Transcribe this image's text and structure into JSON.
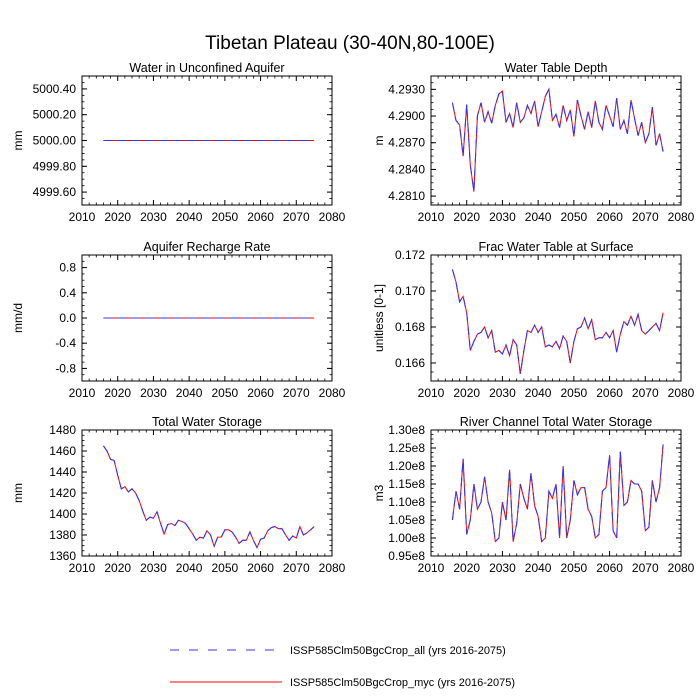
{
  "title": "Tibetan Plateau (30-40N,80-100E)",
  "colors": {
    "series_all": "#3333ff",
    "series_myc": "#ff0000"
  },
  "legend": {
    "placement": "bottom",
    "items": [
      {
        "label": "ISSP585Clm50BgcCrop_all (yrs 2016-2075)",
        "style": "dashed",
        "color": "#3333ff"
      },
      {
        "label": "ISSP585Clm50BgcCrop_myc (yrs 2016-2075)",
        "style": "solid",
        "color": "#ff0000"
      }
    ]
  },
  "chart_data": [
    {
      "type": "line",
      "title": "Water in Unconfined Aquifer",
      "ylabel": "mm",
      "xlim": [
        2010,
        2080
      ],
      "ylim": [
        4999.5,
        5000.5
      ],
      "xticks": [
        2010,
        2020,
        2030,
        2040,
        2050,
        2060,
        2070,
        2080
      ],
      "yticks": [
        4999.6,
        4999.8,
        5000.0,
        5000.2,
        5000.4
      ],
      "ytick_labels": [
        "4999.60",
        "4999.80",
        "5000.00",
        "5000.20",
        "5000.40"
      ],
      "x": [
        2016,
        2075
      ],
      "y": [
        5000.0,
        5000.0
      ]
    },
    {
      "type": "line",
      "title": "Water Table Depth",
      "ylabel": "m",
      "xlim": [
        2010,
        2080
      ],
      "ylim": [
        4.28,
        4.2945
      ],
      "xticks": [
        2010,
        2020,
        2030,
        2040,
        2050,
        2060,
        2070,
        2080
      ],
      "yticks": [
        4.281,
        4.284,
        4.287,
        4.29,
        4.293
      ],
      "ytick_labels": [
        "4.2810",
        "4.2840",
        "4.2870",
        "4.2900",
        "4.2930"
      ],
      "x_start": 2016,
      "y": [
        4.2915,
        4.2895,
        4.289,
        4.2855,
        4.2913,
        4.2845,
        4.2815,
        4.29,
        4.2915,
        4.2893,
        4.2905,
        4.2892,
        4.2912,
        4.2925,
        4.2928,
        4.2893,
        4.2903,
        4.2887,
        4.2915,
        4.2893,
        4.2898,
        4.2912,
        4.2903,
        4.2917,
        4.2888,
        4.2905,
        4.2922,
        4.293,
        4.2895,
        4.2902,
        4.2887,
        4.2912,
        4.2895,
        4.2907,
        4.2877,
        4.2918,
        4.29,
        4.2885,
        4.2905,
        4.2887,
        4.2917,
        4.2893,
        4.2885,
        4.2912,
        4.29,
        4.2888,
        4.292,
        4.2885,
        4.2895,
        4.288,
        4.2918,
        4.2897,
        4.2878,
        4.2893,
        4.287,
        4.288,
        4.291,
        4.2867,
        4.288,
        4.286
      ]
    },
    {
      "type": "line",
      "title": "Aquifer Recharge Rate",
      "ylabel": "mm/d",
      "xlim": [
        2010,
        2080
      ],
      "ylim": [
        -1.0,
        1.0
      ],
      "xticks": [
        2010,
        2020,
        2030,
        2040,
        2050,
        2060,
        2070,
        2080
      ],
      "yticks": [
        -0.8,
        -0.4,
        0.0,
        0.4,
        0.8
      ],
      "ytick_labels": [
        "-0.8",
        "-0.4",
        "0.0",
        "0.4",
        "0.8"
      ],
      "x": [
        2016,
        2075
      ],
      "y": [
        0.0,
        0.0
      ]
    },
    {
      "type": "line",
      "title": "Frac Water Table at Surface",
      "ylabel": "unitless [0-1]",
      "xlim": [
        2010,
        2080
      ],
      "ylim": [
        0.165,
        0.172
      ],
      "xticks": [
        2010,
        2020,
        2030,
        2040,
        2050,
        2060,
        2070,
        2080
      ],
      "yticks": [
        0.166,
        0.168,
        0.17,
        0.172
      ],
      "ytick_labels": [
        "0.166",
        "0.168",
        "0.170",
        "0.172"
      ],
      "x_start": 2016,
      "y": [
        0.1712,
        0.1705,
        0.1694,
        0.1697,
        0.1688,
        0.1667,
        0.1672,
        0.1676,
        0.1677,
        0.168,
        0.1674,
        0.1678,
        0.1666,
        0.1667,
        0.1665,
        0.167,
        0.1664,
        0.1673,
        0.167,
        0.1654,
        0.1667,
        0.1678,
        0.1677,
        0.1681,
        0.1677,
        0.168,
        0.1669,
        0.167,
        0.1669,
        0.1672,
        0.1668,
        0.1675,
        0.1672,
        0.166,
        0.1672,
        0.1679,
        0.168,
        0.1685,
        0.1679,
        0.1684,
        0.1673,
        0.1674,
        0.1674,
        0.1677,
        0.1674,
        0.1678,
        0.1666,
        0.1676,
        0.1683,
        0.1681,
        0.1686,
        0.1681,
        0.1687,
        0.1678,
        0.1676,
        0.1678,
        0.168,
        0.1682,
        0.1678,
        0.1688
      ]
    },
    {
      "type": "line",
      "title": "Total Water Storage",
      "ylabel": "mm",
      "xlim": [
        2010,
        2080
      ],
      "ylim": [
        1360,
        1480
      ],
      "xticks": [
        2010,
        2020,
        2030,
        2040,
        2050,
        2060,
        2070,
        2080
      ],
      "yticks": [
        1360,
        1380,
        1400,
        1420,
        1440,
        1460,
        1480
      ],
      "ytick_labels": [
        "1360",
        "1380",
        "1400",
        "1420",
        "1440",
        "1460",
        "1480"
      ],
      "x_start": 2016,
      "y": [
        1465,
        1460,
        1452,
        1451,
        1437,
        1424,
        1426,
        1421,
        1424,
        1420,
        1413,
        1403,
        1394,
        1397,
        1396,
        1402,
        1391,
        1381,
        1390,
        1391,
        1389,
        1394,
        1393,
        1391,
        1386,
        1381,
        1375,
        1378,
        1377,
        1384,
        1380,
        1369,
        1378,
        1378,
        1385,
        1385,
        1383,
        1378,
        1372,
        1375,
        1375,
        1383,
        1375,
        1368,
        1376,
        1377,
        1384,
        1387,
        1388,
        1386,
        1386,
        1380,
        1375,
        1379,
        1377,
        1388,
        1380,
        1382,
        1385,
        1388
      ]
    },
    {
      "type": "line",
      "title": "River Channel Total Water Storage",
      "ylabel": "m3",
      "xlim": [
        2010,
        2080
      ],
      "ylim": [
        95000000.0,
        130000000.0
      ],
      "xticks": [
        2010,
        2020,
        2030,
        2040,
        2050,
        2060,
        2070,
        2080
      ],
      "yticks": [
        95000000.0,
        100000000.0,
        105000000.0,
        110000000.0,
        115000000.0,
        120000000.0,
        125000000.0,
        130000000.0
      ],
      "ytick_labels": [
        "0.95e8",
        "1.00e8",
        "1.05e8",
        "1.10e8",
        "1.15e8",
        "1.20e8",
        "1.25e8",
        "1.30e8"
      ],
      "x_start": 2016,
      "y": [
        105000000.0,
        113000000.0,
        108000000.0,
        122000000.0,
        101000000.0,
        105000000.0,
        115000000.0,
        108000000.0,
        110000000.0,
        117000000.0,
        110000000.0,
        107000000.0,
        99000000.0,
        100000000.0,
        110000000.0,
        105000000.0,
        119000000.0,
        99000000.0,
        104000000.0,
        115000000.0,
        111000000.0,
        108000000.0,
        118000000.0,
        109000000.0,
        106000000.0,
        99000000.0,
        100000000.0,
        113000000.0,
        111000000.0,
        115000000.0,
        100000000.0,
        120000000.0,
        100000000.0,
        105000000.0,
        116000000.0,
        112000000.0,
        114000000.0,
        114000000.0,
        108000000.0,
        106000000.0,
        100000000.0,
        101000000.0,
        113000000.0,
        114000000.0,
        123000000.0,
        102000000.0,
        100000000.0,
        124000000.0,
        109000000.0,
        110000000.0,
        116000000.0,
        115000000.0,
        115000000.0,
        113000000.0,
        102000000.0,
        103000000.0,
        116000000.0,
        110000000.0,
        114000000.0,
        126000000.0
      ]
    }
  ]
}
